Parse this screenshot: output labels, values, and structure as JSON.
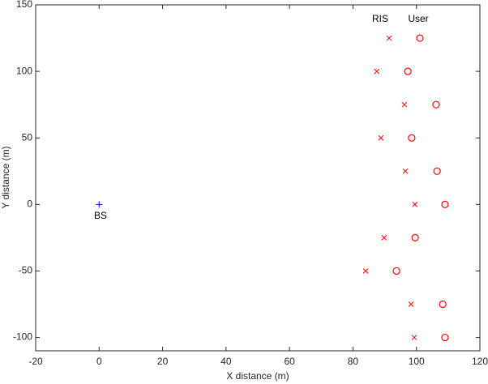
{
  "chart_data": {
    "type": "scatter",
    "xlabel": "X distance (m)",
    "ylabel": "Y distance (m)",
    "xlim": [
      -20,
      120
    ],
    "xticks": [
      -20,
      0,
      20,
      40,
      60,
      80,
      100,
      120
    ],
    "ylim": [
      -110,
      150
    ],
    "yticks": [
      -100,
      -50,
      0,
      50,
      100,
      150
    ],
    "grid": false,
    "annotations": [
      "RIS",
      "User",
      "BS"
    ],
    "series": [
      {
        "color": "#ff0000",
        "marker": "x",
        "x": [
          91.4,
          87.5,
          96.2,
          88.8,
          96.5,
          99.5,
          89.8,
          84,
          98.3,
          99.3
        ],
        "values": [
          125,
          100,
          75,
          50,
          25,
          0,
          -25,
          -50,
          -75,
          -100
        ]
      },
      {
        "color": "#ff0000",
        "marker": "o",
        "x": [
          101.1,
          97.3,
          106.2,
          98.5,
          106.5,
          109,
          99.6,
          93.7,
          108.3,
          109
        ],
        "values": [
          125,
          100,
          75,
          50,
          25,
          0,
          -25,
          -50,
          -75,
          -100
        ]
      },
      {
        "color": "#0000ff",
        "marker": "+",
        "x": [
          0
        ],
        "values": [
          0
        ]
      }
    ]
  }
}
